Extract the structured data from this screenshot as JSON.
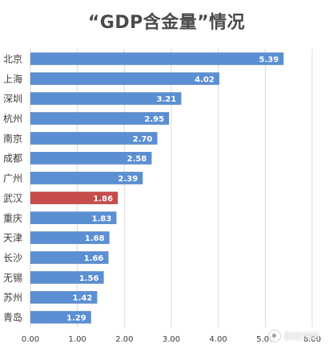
{
  "chart_data": {
    "type": "bar",
    "orientation": "horizontal",
    "title": "“GDP含金量”情况",
    "categories": [
      "北京",
      "上海",
      "深圳",
      "杭州",
      "南京",
      "成都",
      "广州",
      "武汉",
      "重庆",
      "天津",
      "长沙",
      "无锡",
      "苏州",
      "青岛"
    ],
    "values": [
      5.39,
      4.02,
      3.21,
      2.95,
      2.7,
      2.58,
      2.39,
      1.86,
      1.83,
      1.68,
      1.66,
      1.56,
      1.42,
      1.29
    ],
    "data_labels": [
      "5.39",
      "4.02",
      "3.21",
      "2.95",
      "2.70",
      "2.58",
      "2.39",
      "1.86",
      "1.83",
      "1.68",
      "1.66",
      "1.56",
      "1.42",
      "1.29"
    ],
    "highlight_category": "武汉",
    "xlim": [
      0,
      6
    ],
    "x_ticks": [
      "0.00",
      "1.00",
      "2.00",
      "3.00",
      "4.00",
      "5.00",
      "6.00"
    ],
    "grid": true,
    "legend": "none",
    "colors": {
      "bar": "#5b8fd3",
      "bar_highlight": "#c64b4b",
      "grid": "#d9d9d9",
      "label_text": "#ffffff",
      "axis_text": "#3b3b3b"
    }
  },
  "watermark": {
    "text": "财经锐略"
  }
}
